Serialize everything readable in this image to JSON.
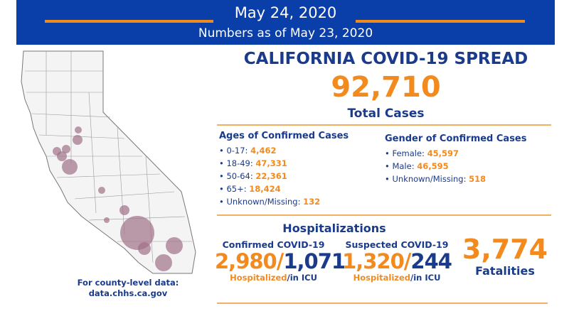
{
  "header": {
    "date": "May 24, 2020",
    "numbers_as_of": "Numbers as of May 23, 2020"
  },
  "title": "CALIFORNIA COVID-19 SPREAD",
  "total_cases": {
    "value": "92,710",
    "label": "Total Cases"
  },
  "ages": {
    "heading": "Ages of Confirmed Cases",
    "items": [
      {
        "label": "0-17: ",
        "value": "4,462"
      },
      {
        "label": "18-49: ",
        "value": "47,331"
      },
      {
        "label": "50-64: ",
        "value": "22,361"
      },
      {
        "label": "65+: ",
        "value": "18,424"
      },
      {
        "label": "Unknown/Missing: ",
        "value": "132"
      }
    ]
  },
  "gender": {
    "heading": "Gender of Confirmed Cases",
    "items": [
      {
        "label": "Female: ",
        "value": "45,597"
      },
      {
        "label": "Male: ",
        "value": "46,595"
      },
      {
        "label": "Unknown/Missing: ",
        "value": "518"
      }
    ]
  },
  "hospitalizations": {
    "heading": "Hospitalizations",
    "confirmed": {
      "label": "Confirmed COVID-19",
      "hospitalized": "2,980",
      "icu": "1,071",
      "sub_hosp": "Hospitalized",
      "sub_icu": "/in ICU"
    },
    "suspected": {
      "label": "Suspected COVID-19",
      "hospitalized": "1,320",
      "icu": "244",
      "sub_hosp": "Hospitalized",
      "sub_icu": "/in ICU"
    }
  },
  "fatalities": {
    "value": "3,774",
    "label": "Fatalities"
  },
  "county_data": {
    "line1": "For county-level data:",
    "line2": "data.chhs.ca.gov"
  },
  "colors": {
    "blue": "#0a3ea8",
    "orange": "#f28a1e",
    "bubble": "#a07088"
  }
}
